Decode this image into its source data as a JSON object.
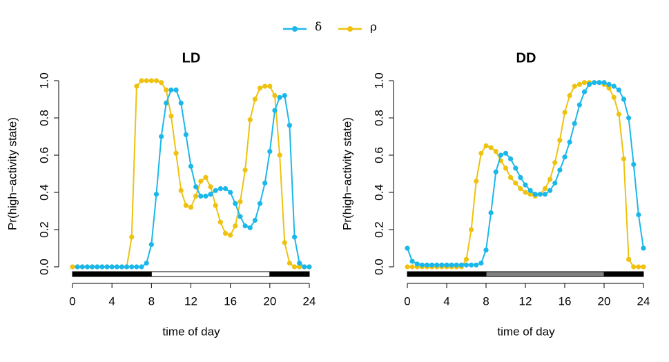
{
  "chart_data": [
    {
      "type": "line",
      "title": "LD",
      "xlabel": "time of day",
      "ylabel": "Pr(high−activity state)",
      "x": [
        0,
        0.5,
        1,
        1.5,
        2,
        2.5,
        3,
        3.5,
        4,
        4.5,
        5,
        5.5,
        6,
        6.5,
        7,
        7.5,
        8,
        8.5,
        9,
        9.5,
        10,
        10.5,
        11,
        11.5,
        12,
        12.5,
        13,
        13.5,
        14,
        14.5,
        15,
        15.5,
        16,
        16.5,
        17,
        17.5,
        18,
        18.5,
        19,
        19.5,
        20,
        20.5,
        21,
        21.5,
        22,
        22.5,
        23,
        23.5,
        24
      ],
      "series": [
        {
          "name": "δ",
          "color": "#1ab8ea",
          "values": [
            null,
            0,
            0,
            0,
            0,
            0,
            0,
            0,
            0,
            0,
            0,
            0,
            0,
            0,
            0,
            0.02,
            0.12,
            0.39,
            0.7,
            0.88,
            0.95,
            0.95,
            0.88,
            0.71,
            0.54,
            0.43,
            0.38,
            0.38,
            0.39,
            0.41,
            0.42,
            0.42,
            0.4,
            0.34,
            0.27,
            0.22,
            0.21,
            0.25,
            0.34,
            0.45,
            0.62,
            0.84,
            0.91,
            0.92,
            0.76,
            0.16,
            0.02,
            0,
            0
          ]
        },
        {
          "name": "ρ",
          "color": "#eec20e",
          "values": [
            0,
            0,
            0,
            0,
            0,
            0,
            0,
            0,
            0,
            0,
            0,
            0,
            0.16,
            0.97,
            1,
            1,
            1,
            1,
            0.99,
            0.95,
            0.81,
            0.61,
            0.41,
            0.33,
            0.32,
            0.38,
            0.46,
            0.48,
            0.43,
            0.33,
            0.24,
            0.18,
            0.17,
            0.22,
            0.35,
            0.52,
            0.79,
            0.9,
            0.96,
            0.97,
            0.97,
            0.92,
            0.6,
            0.13,
            0.02,
            0,
            0,
            0,
            0
          ]
        }
      ],
      "light_schedule": [
        {
          "start": 0,
          "end": 8,
          "color": "#000000"
        },
        {
          "start": 8,
          "end": 20,
          "color": "#ffffff"
        },
        {
          "start": 20,
          "end": 24,
          "color": "#000000"
        }
      ],
      "xlim": [
        0,
        24
      ],
      "ylim": [
        0,
        1
      ],
      "xticks": [
        0,
        4,
        8,
        12,
        16,
        20,
        24
      ],
      "yticks": [
        {
          "value": 0,
          "label": "0.0"
        },
        {
          "value": 0.2,
          "label": "0.2"
        },
        {
          "value": 0.4,
          "label": "0.4"
        },
        {
          "value": 0.6,
          "label": "0.6"
        },
        {
          "value": 0.8,
          "label": "0.8"
        },
        {
          "value": 1,
          "label": "1.0"
        }
      ]
    },
    {
      "type": "line",
      "title": "DD",
      "xlabel": "time of day",
      "ylabel": "Pr(high−activity state)",
      "x": [
        0,
        0.5,
        1,
        1.5,
        2,
        2.5,
        3,
        3.5,
        4,
        4.5,
        5,
        5.5,
        6,
        6.5,
        7,
        7.5,
        8,
        8.5,
        9,
        9.5,
        10,
        10.5,
        11,
        11.5,
        12,
        12.5,
        13,
        13.5,
        14,
        14.5,
        15,
        15.5,
        16,
        16.5,
        17,
        17.5,
        18,
        18.5,
        19,
        19.5,
        20,
        20.5,
        21,
        21.5,
        22,
        22.5,
        23,
        23.5,
        24
      ],
      "series": [
        {
          "color": "#1ab8ea",
          "values": [
            0.1,
            0.03,
            0.015,
            0.01,
            0.01,
            0.01,
            0.01,
            0.01,
            0.01,
            0.01,
            0.01,
            0.01,
            0.01,
            0.01,
            0.01,
            0.02,
            0.09,
            0.29,
            0.51,
            0.6,
            0.61,
            0.58,
            0.53,
            0.48,
            0.44,
            0.41,
            0.39,
            0.39,
            0.39,
            0.41,
            0.45,
            0.52,
            0.59,
            0.67,
            0.77,
            0.87,
            0.94,
            0.98,
            0.99,
            0.99,
            0.99,
            0.98,
            0.97,
            0.95,
            0.9,
            0.8,
            0.55,
            0.28,
            0.1
          ]
        },
        {
          "color": "#eec20e",
          "values": [
            0,
            0,
            0,
            0,
            0,
            0,
            0,
            0,
            0,
            0,
            0,
            0,
            0.04,
            0.2,
            0.46,
            0.61,
            0.65,
            0.64,
            0.62,
            0.57,
            0.53,
            0.48,
            0.45,
            0.42,
            0.4,
            0.39,
            0.38,
            0.39,
            0.42,
            0.47,
            0.56,
            0.68,
            0.83,
            0.92,
            0.97,
            0.98,
            0.99,
            0.99,
            0.99,
            0.99,
            0.98,
            0.96,
            0.91,
            0.82,
            0.58,
            0.04,
            0,
            0,
            0
          ]
        }
      ],
      "light_schedule": [
        {
          "start": 0,
          "end": 8,
          "color": "#000000"
        },
        {
          "start": 8,
          "end": 20,
          "color": "#808080"
        },
        {
          "start": 20,
          "end": 24,
          "color": "#000000"
        }
      ],
      "xlim": [
        0,
        24
      ],
      "ylim": [
        0,
        1
      ],
      "xticks": [
        0,
        4,
        8,
        12,
        16,
        20,
        24
      ],
      "yticks": [
        {
          "value": 0,
          "label": "0.0"
        },
        {
          "value": 0.2,
          "label": "0.2"
        },
        {
          "value": 0.4,
          "label": "0.4"
        },
        {
          "value": 0.6,
          "label": "0.6"
        },
        {
          "value": 0.8,
          "label": "0.8"
        },
        {
          "value": 1,
          "label": "1.0"
        }
      ]
    }
  ]
}
